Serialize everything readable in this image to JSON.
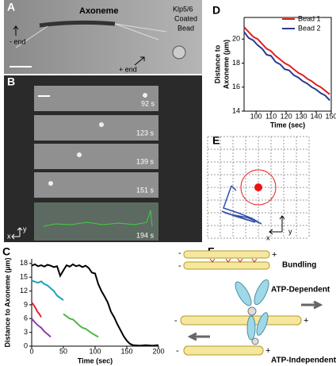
{
  "panels": {
    "A": {
      "label": "A",
      "axoneme": "Axoneme",
      "bead": [
        "Klp5/6",
        "Coated",
        "Bead"
      ],
      "minus_end": "- end",
      "plus_end": "+ end"
    },
    "B": {
      "label": "B",
      "times": [
        "92 s",
        "123 s",
        "139 s",
        "151 s",
        "194 s"
      ],
      "x": "x",
      "y": "y"
    },
    "C": {
      "label": "C"
    },
    "D": {
      "label": "D"
    },
    "E": {
      "label": "E",
      "x": "x",
      "y": "y"
    },
    "F": {
      "label": "F",
      "bundling": "Bundling",
      "atp_dependent": "ATP-Dependent",
      "atp_independent": "ATP-Independent",
      "plus": "+",
      "minus": "-"
    }
  },
  "chart_data": [
    {
      "type": "line",
      "y_label": "Distance to Axoneme (µm)",
      "x_label": "Time (sec)",
      "xlim": [
        0,
        200
      ],
      "ylim": [
        0,
        19
      ],
      "xticks": [
        0,
        50,
        100,
        150,
        200
      ],
      "yticks": [
        0,
        3,
        6,
        9,
        12,
        15,
        18
      ],
      "series": [
        {
          "color": "#000000",
          "x": [
            0,
            5,
            10,
            15,
            20,
            25,
            30,
            35,
            40,
            45,
            50,
            55,
            60,
            65,
            70,
            75,
            80,
            85,
            90,
            95,
            100,
            105,
            110,
            115,
            120,
            125,
            130,
            135,
            140,
            145,
            150,
            155,
            160,
            170,
            180,
            190,
            200
          ],
          "values": [
            17.5,
            17.8,
            17.4,
            17.6,
            17.3,
            17.7,
            17.5,
            17.2,
            17.4,
            15.3,
            16.5,
            17.6,
            17.3,
            17.8,
            17.4,
            17.6,
            17.2,
            17.5,
            17.0,
            16.0,
            15.8,
            13.5,
            12.0,
            10.8,
            9.5,
            7.5,
            6.3,
            4.8,
            3.5,
            2.2,
            1.2,
            0.5,
            0.2,
            0.1,
            0.2,
            0.1,
            0.2
          ]
        },
        {
          "color": "#1aa3b8",
          "x": [
            0,
            5,
            10,
            15,
            20,
            25,
            30,
            35,
            40,
            45,
            50
          ],
          "values": [
            14.3,
            14.0,
            13.8,
            14.1,
            13.5,
            13.2,
            12.6,
            12.0,
            11.0,
            10.5,
            10.0
          ]
        },
        {
          "color": "#e8202a",
          "x": [
            0,
            3,
            6,
            9,
            12,
            15
          ],
          "values": [
            9.5,
            9.0,
            8.3,
            7.5,
            7.0,
            6.3
          ]
        },
        {
          "color": "#8b3fa8",
          "x": [
            0,
            5,
            10,
            15,
            20,
            25,
            30
          ],
          "values": [
            6.0,
            5.2,
            4.5,
            4.0,
            3.2,
            2.6,
            2.0
          ]
        },
        {
          "color": "#4db848",
          "x": [
            50,
            55,
            60,
            65,
            70,
            75,
            80,
            85,
            90,
            95,
            100,
            105
          ],
          "values": [
            7.0,
            6.5,
            6.0,
            5.8,
            5.2,
            4.5,
            4.0,
            3.8,
            3.3,
            2.8,
            2.4,
            2.0
          ]
        }
      ]
    },
    {
      "type": "line",
      "y_label": [
        "Distance to",
        "Axoneme (µm)"
      ],
      "x_label": "Time (sec)",
      "xlim": [
        92,
        150
      ],
      "ylim": [
        14,
        21.8
      ],
      "xticks": [
        100,
        110,
        120,
        130,
        140,
        150
      ],
      "yticks": [
        14,
        16,
        18,
        20
      ],
      "legend": "upper right",
      "series": [
        {
          "name": "Bead 1",
          "color": "#e02020",
          "x": [
            92,
            95,
            98,
            101,
            104,
            107,
            110,
            113,
            116,
            119,
            122,
            125,
            128,
            131,
            134,
            137,
            140,
            143,
            146,
            149
          ],
          "values": [
            21.0,
            20.6,
            20.2,
            20.0,
            19.6,
            19.2,
            19.0,
            18.6,
            18.3,
            18.0,
            17.8,
            17.5,
            17.2,
            17.0,
            16.7,
            16.5,
            16.2,
            16.0,
            15.7,
            15.4
          ]
        },
        {
          "name": "Bead 2",
          "color": "#2a3a8f",
          "x": [
            92,
            95,
            98,
            101,
            104,
            107,
            110,
            113,
            116,
            119,
            122,
            125,
            128,
            131,
            134,
            137,
            140,
            143,
            146,
            149
          ],
          "values": [
            20.6,
            20.1,
            19.9,
            19.5,
            19.2,
            18.7,
            18.6,
            18.1,
            17.9,
            17.5,
            17.4,
            17.0,
            16.8,
            16.5,
            16.3,
            16.0,
            15.8,
            15.5,
            15.3,
            14.9
          ]
        }
      ]
    }
  ]
}
